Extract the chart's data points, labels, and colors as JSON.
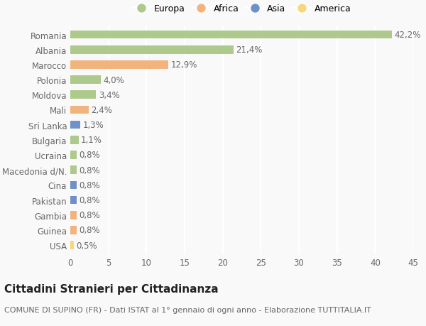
{
  "categories": [
    "Romania",
    "Albania",
    "Marocco",
    "Polonia",
    "Moldova",
    "Mali",
    "Sri Lanka",
    "Bulgaria",
    "Ucraina",
    "Macedonia d/N.",
    "Cina",
    "Pakistan",
    "Gambia",
    "Guinea",
    "USA"
  ],
  "values": [
    42.2,
    21.4,
    12.9,
    4.0,
    3.4,
    2.4,
    1.3,
    1.1,
    0.8,
    0.8,
    0.8,
    0.8,
    0.8,
    0.8,
    0.5
  ],
  "labels": [
    "42,2%",
    "21,4%",
    "12,9%",
    "4,0%",
    "3,4%",
    "2,4%",
    "1,3%",
    "1,1%",
    "0,8%",
    "0,8%",
    "0,8%",
    "0,8%",
    "0,8%",
    "0,8%",
    "0,5%"
  ],
  "colors": [
    "#aec98c",
    "#aec98c",
    "#f2b47e",
    "#aec98c",
    "#aec98c",
    "#f2b47e",
    "#7090c8",
    "#aec98c",
    "#aec98c",
    "#aec98c",
    "#7090c8",
    "#7090c8",
    "#f2b47e",
    "#f2b47e",
    "#f5d87a"
  ],
  "legend_labels": [
    "Europa",
    "Africa",
    "Asia",
    "America"
  ],
  "legend_colors": [
    "#aec98c",
    "#f2b47e",
    "#7090c8",
    "#f5d87a"
  ],
  "title": "Cittadini Stranieri per Cittadinanza",
  "subtitle": "COMUNE DI SUPINO (FR) - Dati ISTAT al 1° gennaio di ogni anno - Elaborazione TUTTITALIA.IT",
  "xlim": [
    0,
    45
  ],
  "xticks": [
    0,
    5,
    10,
    15,
    20,
    25,
    30,
    35,
    40,
    45
  ],
  "background_color": "#f9f9f9",
  "bar_height": 0.55,
  "label_fontsize": 8.5,
  "title_fontsize": 11,
  "subtitle_fontsize": 8,
  "tick_fontsize": 8.5,
  "grid_color": "#ffffff",
  "text_color": "#666666"
}
